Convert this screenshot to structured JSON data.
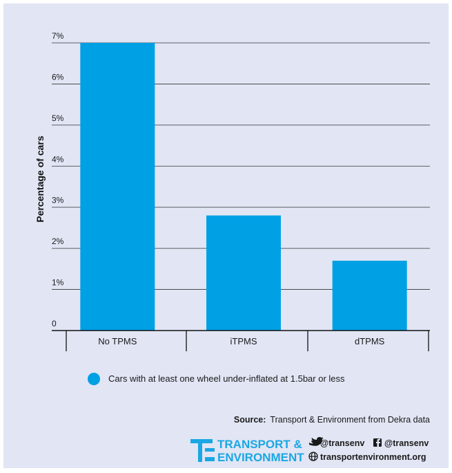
{
  "chart_data": {
    "type": "bar",
    "title": "",
    "ylabel": "Percentage of cars",
    "xlabel": "",
    "categories": [
      "No TPMS",
      "iTPMS",
      "dTPMS"
    ],
    "series": [
      {
        "name": "Cars with at least one wheel under-inflated at 1.5bar or less",
        "values": [
          7.0,
          2.8,
          1.7
        ]
      }
    ],
    "ylim": [
      0,
      7
    ],
    "yticks": [
      "0",
      "1%",
      "2%",
      "3%",
      "4%",
      "5%",
      "6%",
      "7%"
    ],
    "grid": true,
    "legend_position": "bottom",
    "colors": {
      "bar": "#00a0e4",
      "background": "#e1e5f4",
      "grid": "#333333"
    }
  },
  "source": {
    "label": "Source:",
    "text": "Transport & Environment from Dekra data"
  },
  "branding": {
    "line1": "TRANSPORT &",
    "line2": "ENVIRONMENT",
    "twitter": "@transenv",
    "facebook": "@transenv",
    "website": "transportenvironment.org",
    "brand_color": "#1aa7e3"
  }
}
